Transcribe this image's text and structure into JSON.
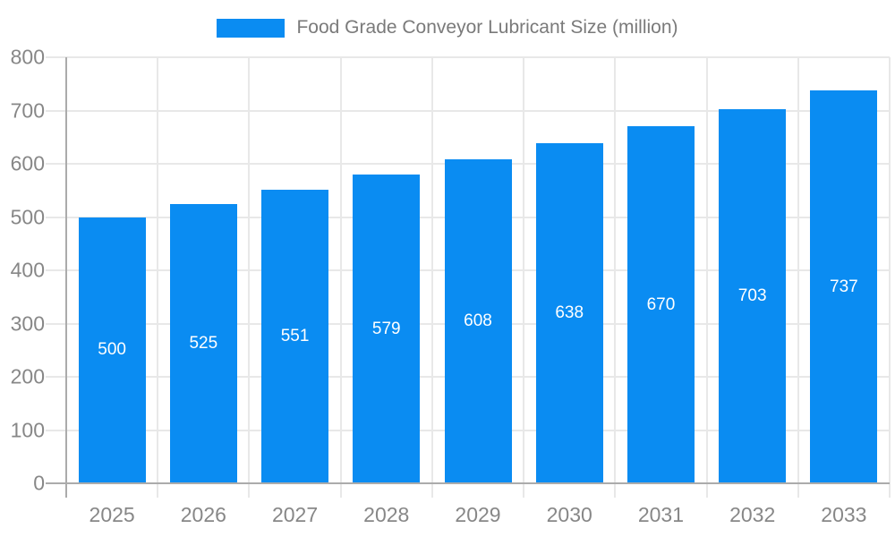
{
  "chart_data": {
    "type": "bar",
    "title": "Food Grade Conveyor Lubricant Size (million)",
    "categories": [
      "2025",
      "2026",
      "2027",
      "2028",
      "2029",
      "2030",
      "2031",
      "2032",
      "2033"
    ],
    "values": [
      500,
      525,
      551,
      579,
      608,
      638,
      670,
      703,
      737
    ],
    "xlabel": "",
    "ylabel": "",
    "ylim": [
      0,
      800
    ],
    "yticks": [
      0,
      100,
      200,
      300,
      400,
      500,
      600,
      700,
      800
    ],
    "grid": true,
    "legend_position": "top-center",
    "value_labels_position": "inside-center",
    "colors": {
      "bar": "#0a8cf2",
      "grid": "#e8e8e8",
      "axis": "#ababab",
      "tick_label": "#878787",
      "legend_text": "#7a7a7a",
      "value_label": "#ffffff",
      "background": "#ffffff"
    }
  }
}
